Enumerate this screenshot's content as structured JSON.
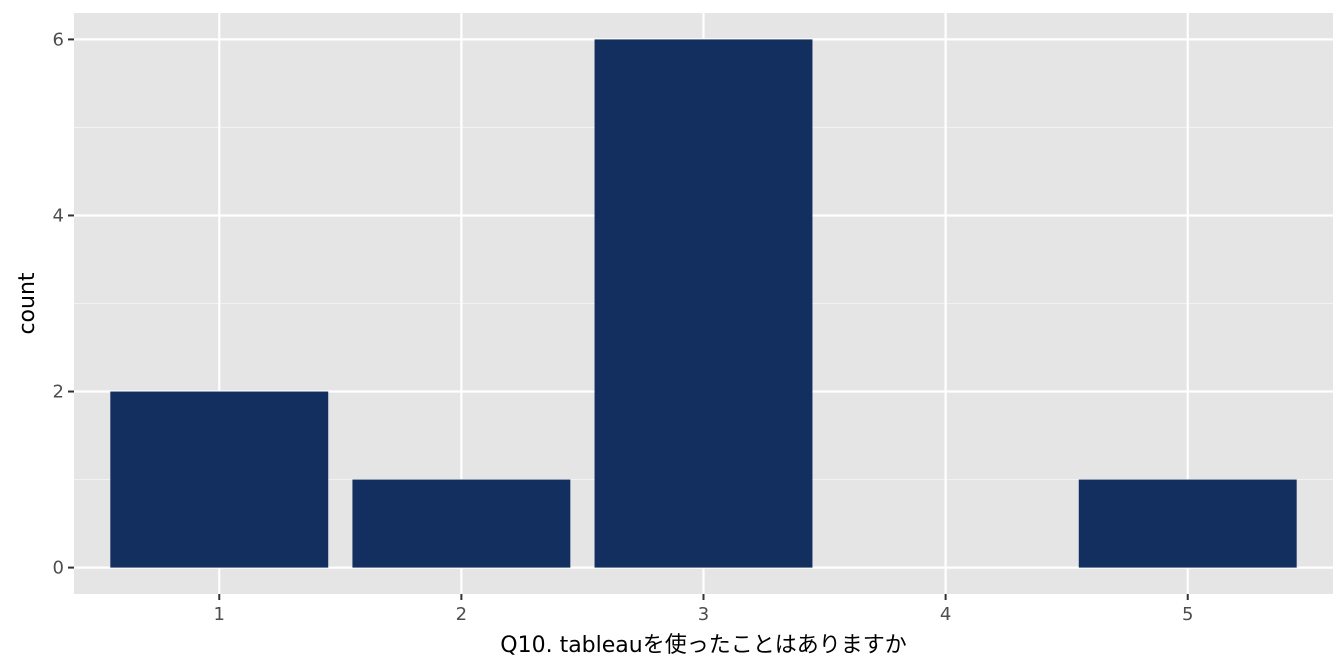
{
  "chart_data": {
    "type": "bar",
    "title": "",
    "xlabel": "Q10. tableauを使ったことはありますか",
    "ylabel": "count",
    "categories": [
      "1",
      "2",
      "3",
      "4",
      "5"
    ],
    "values": [
      2,
      1,
      6,
      0,
      1
    ],
    "yticks": [
      "0",
      "2",
      "4",
      "6"
    ],
    "ylim": [
      -0.3,
      6.3
    ],
    "grid": true,
    "legend": "none"
  },
  "colors": {
    "bar": "#132f5f",
    "panel": "#e5e5e5",
    "grid_major": "#ffffff",
    "grid_minor": "#f2f2f2",
    "tick_text": "#4d4d4d",
    "axis_title": "#000000"
  }
}
